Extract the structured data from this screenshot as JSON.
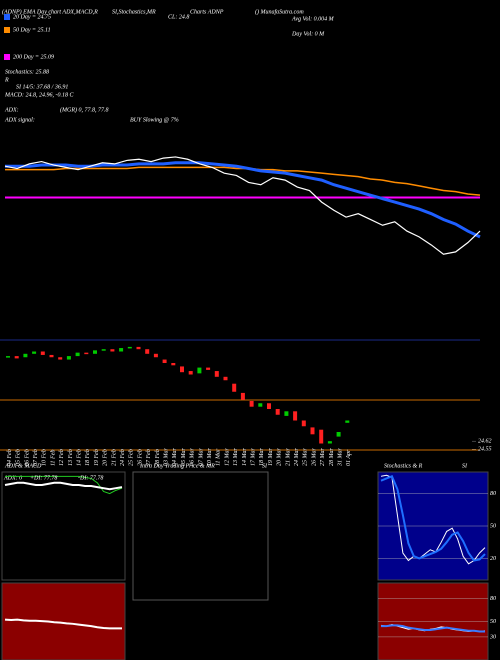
{
  "chart_data": [
    {
      "type": "line",
      "title": "(ADNP) EMA Day chart ADX,MACD,R",
      "subtitle": "SI,Stochastics,MR",
      "annotations": [
        "Charts ADNP",
        "() MunafaSutra.com",
        "CL: 24.8",
        "Avg Vol: 0.004  M",
        "Day Vol: 0  M",
        "Stochastics: 25.88",
        "R",
        "SI 14/5: 37.68 / 36.91",
        "MACD: 24.8, 24.96, -0.18  C",
        "ADX:",
        "(MGR) 0, 77.8, 77.8",
        "ADX  signal:",
        "BUY Slowing @ 7%"
      ],
      "ylim": [
        24.55,
        25.5
      ],
      "color": "#ffffff",
      "values": [
        25.36,
        25.34,
        25.38,
        25.4,
        25.37,
        25.35,
        25.33,
        25.36,
        25.39,
        25.38,
        25.41,
        25.42,
        25.4,
        25.43,
        25.44,
        25.42,
        25.38,
        25.35,
        25.3,
        25.28,
        25.22,
        25.2,
        25.26,
        25.24,
        25.18,
        25.15,
        25.05,
        24.98,
        24.92,
        24.95,
        24.9,
        24.85,
        24.88,
        24.8,
        24.75,
        24.68,
        24.6,
        24.62,
        24.7,
        24.8
      ],
      "series": [
        {
          "name": "20 Day = 24.75",
          "color": "#1f5fff",
          "values": [
            25.36,
            25.36,
            25.36,
            25.37,
            25.37,
            25.37,
            25.36,
            25.36,
            25.37,
            25.37,
            25.37,
            25.38,
            25.38,
            25.38,
            25.39,
            25.39,
            25.39,
            25.38,
            25.37,
            25.36,
            25.34,
            25.32,
            25.31,
            25.3,
            25.28,
            25.26,
            25.24,
            25.2,
            25.17,
            25.14,
            25.11,
            25.08,
            25.05,
            25.02,
            24.99,
            24.95,
            24.9,
            24.86,
            24.8,
            24.75
          ]
        },
        {
          "name": "50 Day = 25.11",
          "color": "#ff8c00",
          "values": [
            25.33,
            25.33,
            25.33,
            25.33,
            25.33,
            25.34,
            25.34,
            25.34,
            25.34,
            25.34,
            25.34,
            25.35,
            25.35,
            25.35,
            25.35,
            25.35,
            25.35,
            25.35,
            25.35,
            25.34,
            25.34,
            25.33,
            25.33,
            25.32,
            25.32,
            25.31,
            25.3,
            25.29,
            25.28,
            25.27,
            25.25,
            25.24,
            25.22,
            25.21,
            25.19,
            25.17,
            25.15,
            25.14,
            25.12,
            25.11
          ]
        },
        {
          "name": "200 Day = 25.09",
          "color": "#ff00ff",
          "values": [
            25.09,
            25.09,
            25.09,
            25.09,
            25.09,
            25.09,
            25.09,
            25.09,
            25.09,
            25.09,
            25.09,
            25.09,
            25.09,
            25.09,
            25.09,
            25.09,
            25.09,
            25.09,
            25.09,
            25.09,
            25.09,
            25.09,
            25.09,
            25.09,
            25.09,
            25.09,
            25.09,
            25.09,
            25.09,
            25.09,
            25.09,
            25.09,
            25.09,
            25.09,
            25.09,
            25.09,
            25.09,
            25.09,
            25.09,
            25.09
          ]
        }
      ]
    },
    {
      "type": "candlestick",
      "categories": [
        "04 Feb",
        "05 Feb",
        "06 Feb",
        "07 Feb",
        "10 Feb",
        "11 Feb",
        "12 Feb",
        "13 Feb",
        "14 Feb",
        "18 Feb",
        "19 Feb",
        "20 Feb",
        "21 Feb",
        "24 Feb",
        "25 Feb",
        "26 Feb",
        "27 Feb",
        "28 Feb",
        "03 Mar",
        "04 Mar",
        "05 Mar",
        "06 Mar",
        "07 Mar",
        "10 Mar",
        "11 Mar",
        "12 Mar",
        "13 Mar",
        "14 Mar",
        "17 Mar",
        "18 Mar",
        "19 Mar",
        "20 Mar",
        "21 Mar",
        "24 Mar",
        "25 Mar",
        "26 Mar",
        "27 Mar",
        "28 Mar",
        "31 Mar",
        "01 Apr"
      ],
      "open": [
        25.35,
        25.36,
        25.35,
        25.38,
        25.4,
        25.37,
        25.35,
        25.33,
        25.36,
        25.39,
        25.38,
        25.41,
        25.42,
        25.4,
        25.43,
        25.44,
        25.42,
        25.38,
        25.33,
        25.3,
        25.27,
        25.23,
        25.21,
        25.26,
        25.23,
        25.18,
        25.12,
        25.04,
        24.97,
        24.92,
        24.95,
        24.9,
        24.84,
        24.88,
        24.8,
        24.74,
        24.72,
        24.6,
        24.66,
        24.78
      ],
      "close": [
        25.36,
        25.34,
        25.38,
        25.4,
        25.37,
        25.35,
        25.33,
        25.36,
        25.39,
        25.38,
        25.41,
        25.42,
        25.4,
        25.43,
        25.44,
        25.42,
        25.38,
        25.35,
        25.3,
        25.28,
        25.22,
        25.2,
        25.26,
        25.24,
        25.18,
        25.15,
        25.05,
        24.98,
        24.92,
        24.95,
        24.9,
        24.85,
        24.88,
        24.8,
        24.75,
        24.68,
        24.6,
        24.62,
        24.7,
        24.8
      ],
      "up_color": "#00cc00",
      "down_color": "#ff2020",
      "ylim": [
        24.5,
        25.5
      ],
      "yticks": [
        24.62,
        24.55
      ]
    },
    {
      "type": "line",
      "title": "ADX  & MACD",
      "annotations": [
        "ADX: 0"
      ],
      "ylim": [
        0,
        100
      ],
      "series": [
        {
          "name": "+DI: 77.78",
          "color": "#22cc22",
          "values": [
            96,
            96,
            96,
            96,
            96,
            96,
            96,
            96,
            96,
            96,
            96,
            96,
            96,
            95,
            94,
            90,
            82,
            80,
            83,
            85
          ]
        },
        {
          "name": "-DI: 77.78",
          "color": "#ffffff",
          "values": [
            88,
            89,
            90,
            90,
            89,
            88,
            88,
            89,
            90,
            90,
            89,
            88,
            88,
            87,
            87,
            86,
            85,
            84,
            85,
            86
          ]
        }
      ]
    },
    {
      "type": "line",
      "ylim": [
        -1,
        1
      ],
      "series": [
        {
          "color": "#ffffff",
          "values": [
            0.05,
            0.04,
            0.05,
            0.03,
            0.02,
            0.02,
            0.01,
            0.0,
            -0.02,
            -0.03,
            -0.05,
            -0.06,
            -0.08,
            -0.1,
            -0.12,
            -0.15,
            -0.17,
            -0.18,
            -0.18,
            -0.18
          ]
        }
      ]
    },
    {
      "type": "panel",
      "title": "Intra  Day Trading Price  & MR",
      "subtitle": "SI"
    },
    {
      "type": "line",
      "title": "Stochastics & R",
      "subtitle": "SI",
      "ylim": [
        0,
        100
      ],
      "yticks": [
        80,
        50,
        20
      ],
      "series": [
        {
          "color": "#ffffff",
          "values": [
            96,
            97,
            95,
            60,
            25,
            18,
            22,
            20,
            24,
            28,
            26,
            35,
            45,
            48,
            38,
            22,
            15,
            18,
            25,
            30
          ]
        },
        {
          "color": "#1f6fff",
          "values": [
            92,
            94,
            96,
            84,
            60,
            34,
            22,
            20,
            22,
            24,
            26,
            29,
            35,
            42,
            44,
            36,
            25,
            18,
            19,
            24
          ]
        }
      ]
    },
    {
      "type": "line",
      "ylim": [
        0,
        100
      ],
      "yticks": [
        80,
        50,
        30
      ],
      "series": [
        {
          "color": "#ffffff",
          "values": [
            45,
            44,
            46,
            44,
            42,
            40,
            41,
            39,
            38,
            40,
            41,
            43,
            42,
            40,
            39,
            38,
            37,
            38,
            37,
            38
          ]
        },
        {
          "color": "#3a7bff",
          "values": [
            44,
            44,
            45,
            45,
            44,
            42,
            41,
            40,
            39,
            39,
            40,
            41,
            42,
            41,
            40,
            39,
            38,
            38,
            37,
            37
          ]
        }
      ]
    }
  ]
}
